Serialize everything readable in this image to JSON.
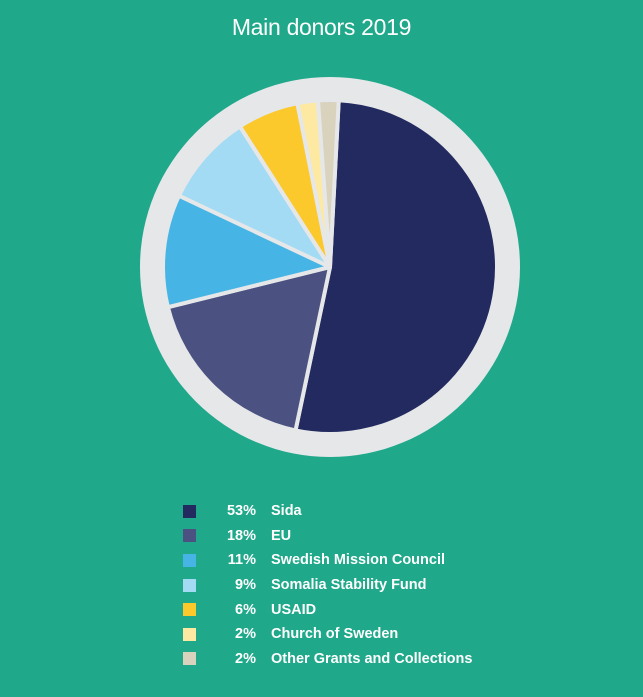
{
  "chart_data": {
    "type": "pie",
    "title": "Main donors 2019",
    "slices": [
      {
        "label": "Sida",
        "percent_label": "53%",
        "value": 53,
        "color": "#222a60"
      },
      {
        "label": "EU",
        "percent_label": "18%",
        "value": 18,
        "color": "#4b5281"
      },
      {
        "label": "Swedish Mission Council",
        "percent_label": "11%",
        "value": 11,
        "color": "#46b5e6"
      },
      {
        "label": "Somalia Stability Fund",
        "percent_label": "9%",
        "value": 9,
        "color": "#a2dbf3"
      },
      {
        "label": "USAID",
        "percent_label": "6%",
        "value": 6,
        "color": "#fcc92d"
      },
      {
        "label": "Church of Sweden",
        "percent_label": "2%",
        "value": 2,
        "color": "#fde9a1"
      },
      {
        "label": "Other Grants and Collections",
        "percent_label": "2%",
        "value": 2,
        "color": "#d9d2bd"
      }
    ],
    "legend_position": "bottom"
  },
  "colors": {
    "background": "#1fa88a",
    "ring": "#e6e7e9",
    "text": "#ffffff"
  }
}
